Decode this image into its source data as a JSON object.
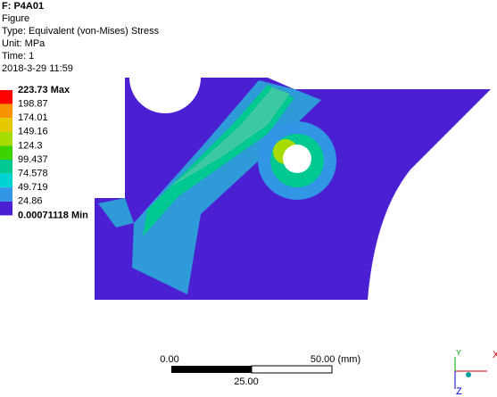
{
  "header": {
    "title": "F: P4A01",
    "lines": [
      "Figure",
      "Type: Equivalent (von-Mises) Stress",
      "Unit: MPa",
      "Time: 1",
      "2018-3-29 11:59"
    ]
  },
  "legend": {
    "labels": [
      "223.73 Max",
      "198.87",
      "174.01",
      "149.16",
      "124.3",
      "99.437",
      "74.578",
      "49.719",
      "24.86",
      "0.00071118 Min"
    ],
    "colors": [
      "#ff0000",
      "#f79200",
      "#e6c800",
      "#a8dc00",
      "#3cd200",
      "#00c891",
      "#00d2d2",
      "#3296e6",
      "#4b1fd2"
    ]
  },
  "scale_bar": {
    "start": "0.00",
    "end": "50.00 (mm)",
    "mid": "25.00"
  },
  "triad": {
    "x": "X",
    "y": "Y",
    "z": "Z"
  }
}
